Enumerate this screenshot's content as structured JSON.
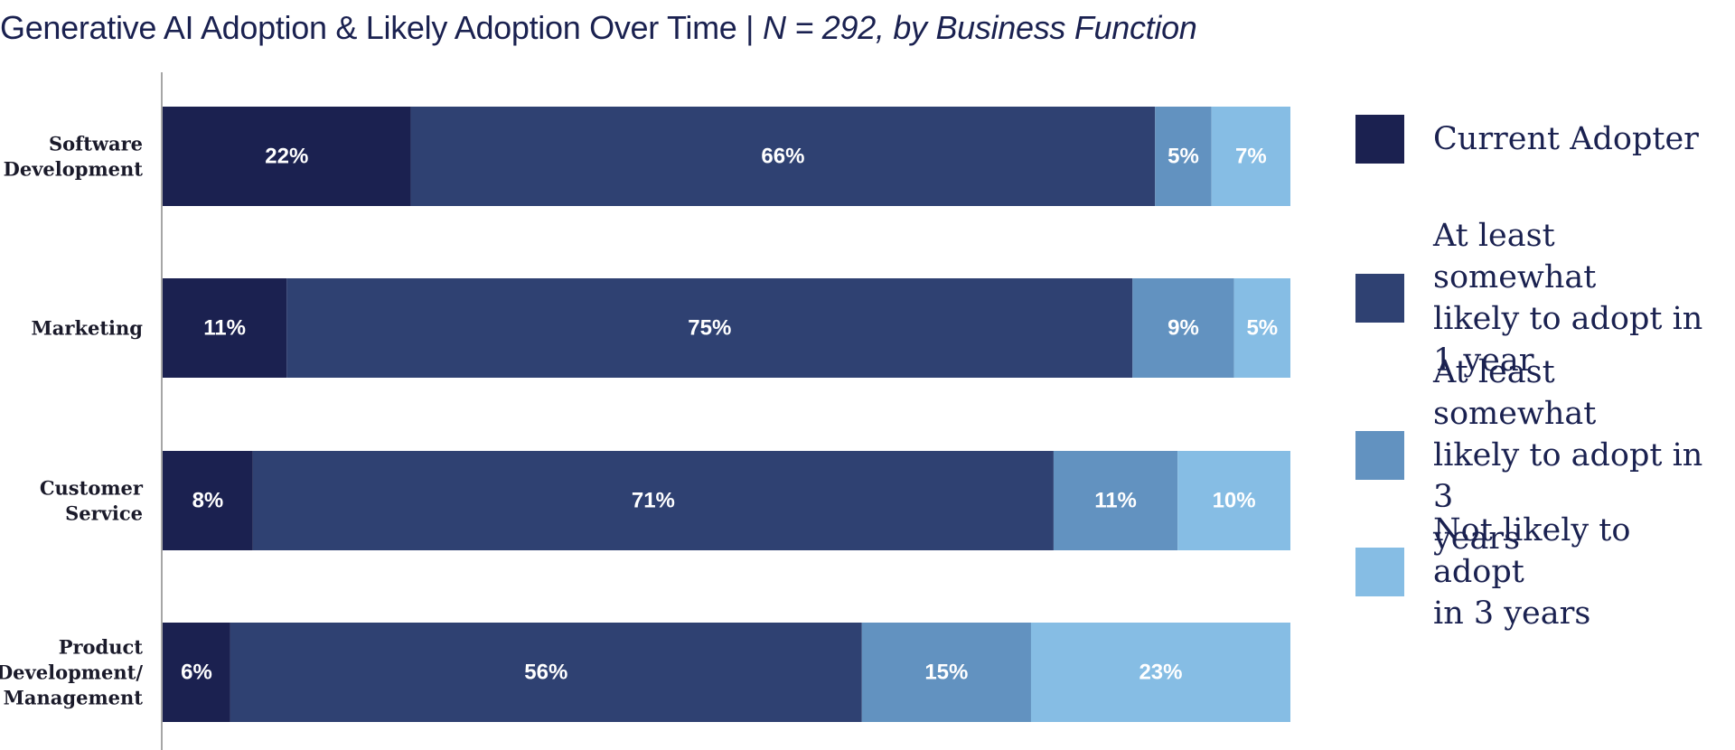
{
  "title": {
    "main": "Generative AI Adoption & Likely Adoption Over Time | ",
    "subtitle": "N = 292, by Business Function"
  },
  "colors": {
    "current_adopter": "#1b2150",
    "likely_1_year": "#2f4172",
    "likely_3_years": "#6292c0",
    "not_likely": "#86bde4",
    "axis": "#888888",
    "text_dark": "#1a2150",
    "bar_label": "#ffffff"
  },
  "chart_data": {
    "type": "bar",
    "orientation": "horizontal",
    "stacked": true,
    "categories": [
      "Software Development",
      "Marketing",
      "Customer Service",
      "Product Development/ Management"
    ],
    "category_label_lines": [
      [
        "Software",
        "Development"
      ],
      [
        "Marketing"
      ],
      [
        "Customer",
        "Service"
      ],
      [
        "Product",
        "Development/",
        "Management"
      ]
    ],
    "series": [
      {
        "name": "Current Adopter",
        "values": [
          22,
          11,
          8,
          6
        ],
        "labels": [
          "22%",
          "11%",
          "8%",
          "6%"
        ]
      },
      {
        "name": "At least somewhat likely to adopt in 1 year",
        "values": [
          66,
          75,
          71,
          56
        ],
        "labels": [
          "66%",
          "75%",
          "71%",
          "56%"
        ]
      },
      {
        "name": "At least somewhat likely to adopt in 3 years",
        "values": [
          5,
          9,
          11,
          15
        ],
        "labels": [
          "5%",
          "9%",
          "11%",
          "15%"
        ]
      },
      {
        "name": "Not likely to adopt in 3 years",
        "values": [
          7,
          5,
          10,
          23
        ],
        "labels": [
          "7%",
          "5%",
          "10%",
          "23%"
        ]
      }
    ],
    "legend_position": "right",
    "grid": false
  },
  "legend": {
    "items": [
      {
        "label": "Current Adopter",
        "lines": [
          "Current Adopter"
        ]
      },
      {
        "label": "At least somewhat likely to adopt in 1 year",
        "lines": [
          "At least somewhat",
          "likely to adopt in",
          "1 year"
        ]
      },
      {
        "label": "At least somewhat likely to adopt in 3 years",
        "lines": [
          "At least somewhat",
          "likely to adopt in 3",
          "years"
        ]
      },
      {
        "label": "Not likely to adopt in 3 years",
        "lines": [
          "Not likely to adopt",
          "in 3 years"
        ]
      }
    ]
  }
}
